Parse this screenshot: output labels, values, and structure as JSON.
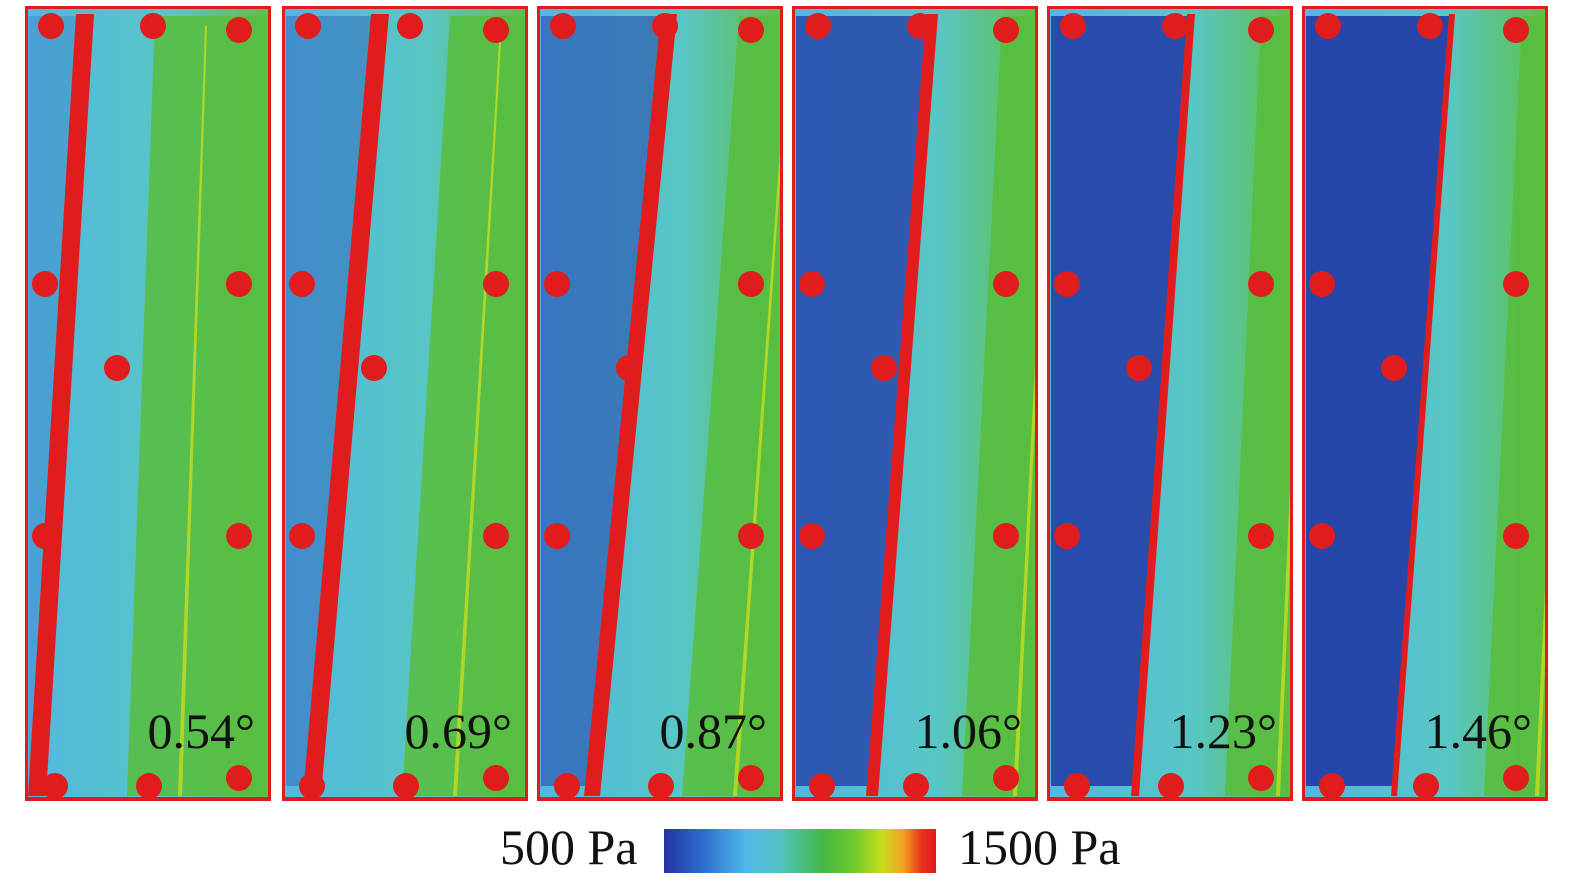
{
  "panels": [
    {
      "angle": "0.54°",
      "low_pressure_level": 0.2
    },
    {
      "angle": "0.69°",
      "low_pressure_level": 0.35
    },
    {
      "angle": "0.87°",
      "low_pressure_level": 0.55
    },
    {
      "angle": "1.06°",
      "low_pressure_level": 0.8
    },
    {
      "angle": "1.23°",
      "low_pressure_level": 0.9
    },
    {
      "angle": "1.46°",
      "low_pressure_level": 0.95
    }
  ],
  "colorbar": {
    "min_label": "500 Pa",
    "max_label": "1500 Pa",
    "colors": {
      "low": "#2233a0",
      "mid_low": "#4fb9e8",
      "mid": "#45b84a",
      "mid_high": "#f4a21e",
      "high": "#e11c1c"
    }
  }
}
